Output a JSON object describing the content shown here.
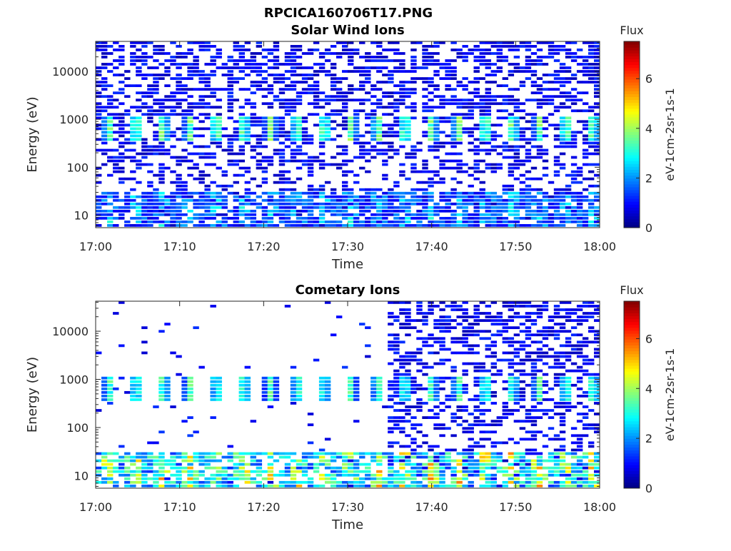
{
  "figure": {
    "main_title": "RPCICA160706T17.PNG"
  },
  "chart_data": [
    {
      "type": "heatmap",
      "title": "Solar Wind Ions",
      "xlabel": "Time",
      "ylabel": "Energy (eV)",
      "x_ticks": [
        "17:00",
        "17:10",
        "17:20",
        "17:30",
        "17:40",
        "17:50",
        "18:00"
      ],
      "xlim": [
        "17:00",
        "18:00"
      ],
      "y_scale": "log",
      "y_ticks": [
        10,
        100,
        1000,
        10000
      ],
      "y_tick_labels": [
        "10",
        "100",
        "1000",
        "10000"
      ],
      "ylim": [
        5.5,
        42000
      ],
      "colorbar": {
        "title": "Flux",
        "label": "eV-1cm-2sr-1s-1",
        "range": [
          0,
          7.5
        ],
        "ticks": [
          "0",
          "2",
          "4",
          "6"
        ],
        "colormap": "jet"
      },
      "features": {
        "background_flux": 1.0,
        "band_energy_eV": 600,
        "band_peak_flux": 4.2,
        "low_energy_flux": 3.2,
        "period_minutes": 3.2,
        "time_start": "17:00",
        "time_end": "18:00"
      }
    },
    {
      "type": "heatmap",
      "title": "Cometary Ions",
      "xlabel": "Time",
      "ylabel": "Energy (eV)",
      "x_ticks": [
        "17:00",
        "17:10",
        "17:20",
        "17:30",
        "17:40",
        "17:50",
        "18:00"
      ],
      "xlim": [
        "17:00",
        "18:00"
      ],
      "y_scale": "log",
      "y_ticks": [
        10,
        100,
        1000,
        10000
      ],
      "y_tick_labels": [
        "10",
        "100",
        "1000",
        "10000"
      ],
      "ylim": [
        5.5,
        42000
      ],
      "colorbar": {
        "title": "Flux",
        "label": "eV-1cm-2sr-1s-1",
        "range": [
          0,
          7.5
        ],
        "ticks": [
          "0",
          "2",
          "4",
          "6"
        ],
        "colormap": "jet"
      },
      "features": {
        "sparse_until": "17:35",
        "dense_from": "17:35",
        "background_flux": 1.0,
        "band_energy_eV": 600,
        "band_peak_flux": 3.8,
        "low_energy_peak_flux": 5.8,
        "period_minutes": 3.2,
        "time_start": "17:00",
        "time_end": "18:00"
      }
    }
  ]
}
